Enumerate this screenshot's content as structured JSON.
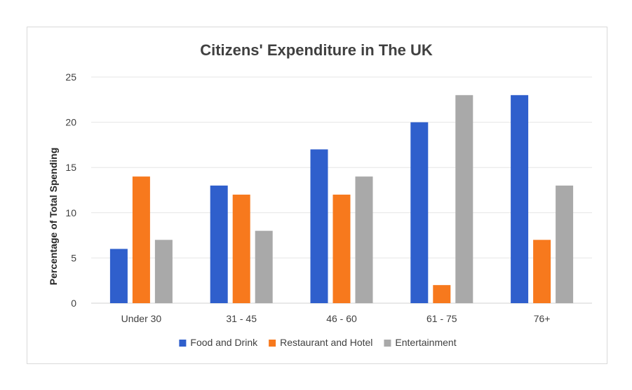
{
  "chart_data": {
    "type": "bar",
    "title": "Citizens' Expenditure in The UK",
    "xlabel": "",
    "ylabel": "Percentage of Total Spending",
    "ylim": [
      0,
      25
    ],
    "yticks": [
      0,
      5,
      10,
      15,
      20,
      25
    ],
    "grid": true,
    "legend_position": "bottom",
    "categories": [
      "Under 30",
      "31 - 45",
      "46 - 60",
      "61 - 75",
      "76+"
    ],
    "series": [
      {
        "name": "Food and Drink",
        "color": "#2f5fcc",
        "values": [
          6,
          13,
          17,
          20,
          23
        ]
      },
      {
        "name": "Restaurant and Hotel",
        "color": "#f7791d",
        "values": [
          14,
          12,
          12,
          2,
          7
        ]
      },
      {
        "name": "Entertainment",
        "color": "#a9a9a9",
        "values": [
          7,
          8,
          14,
          23,
          13
        ]
      }
    ]
  }
}
